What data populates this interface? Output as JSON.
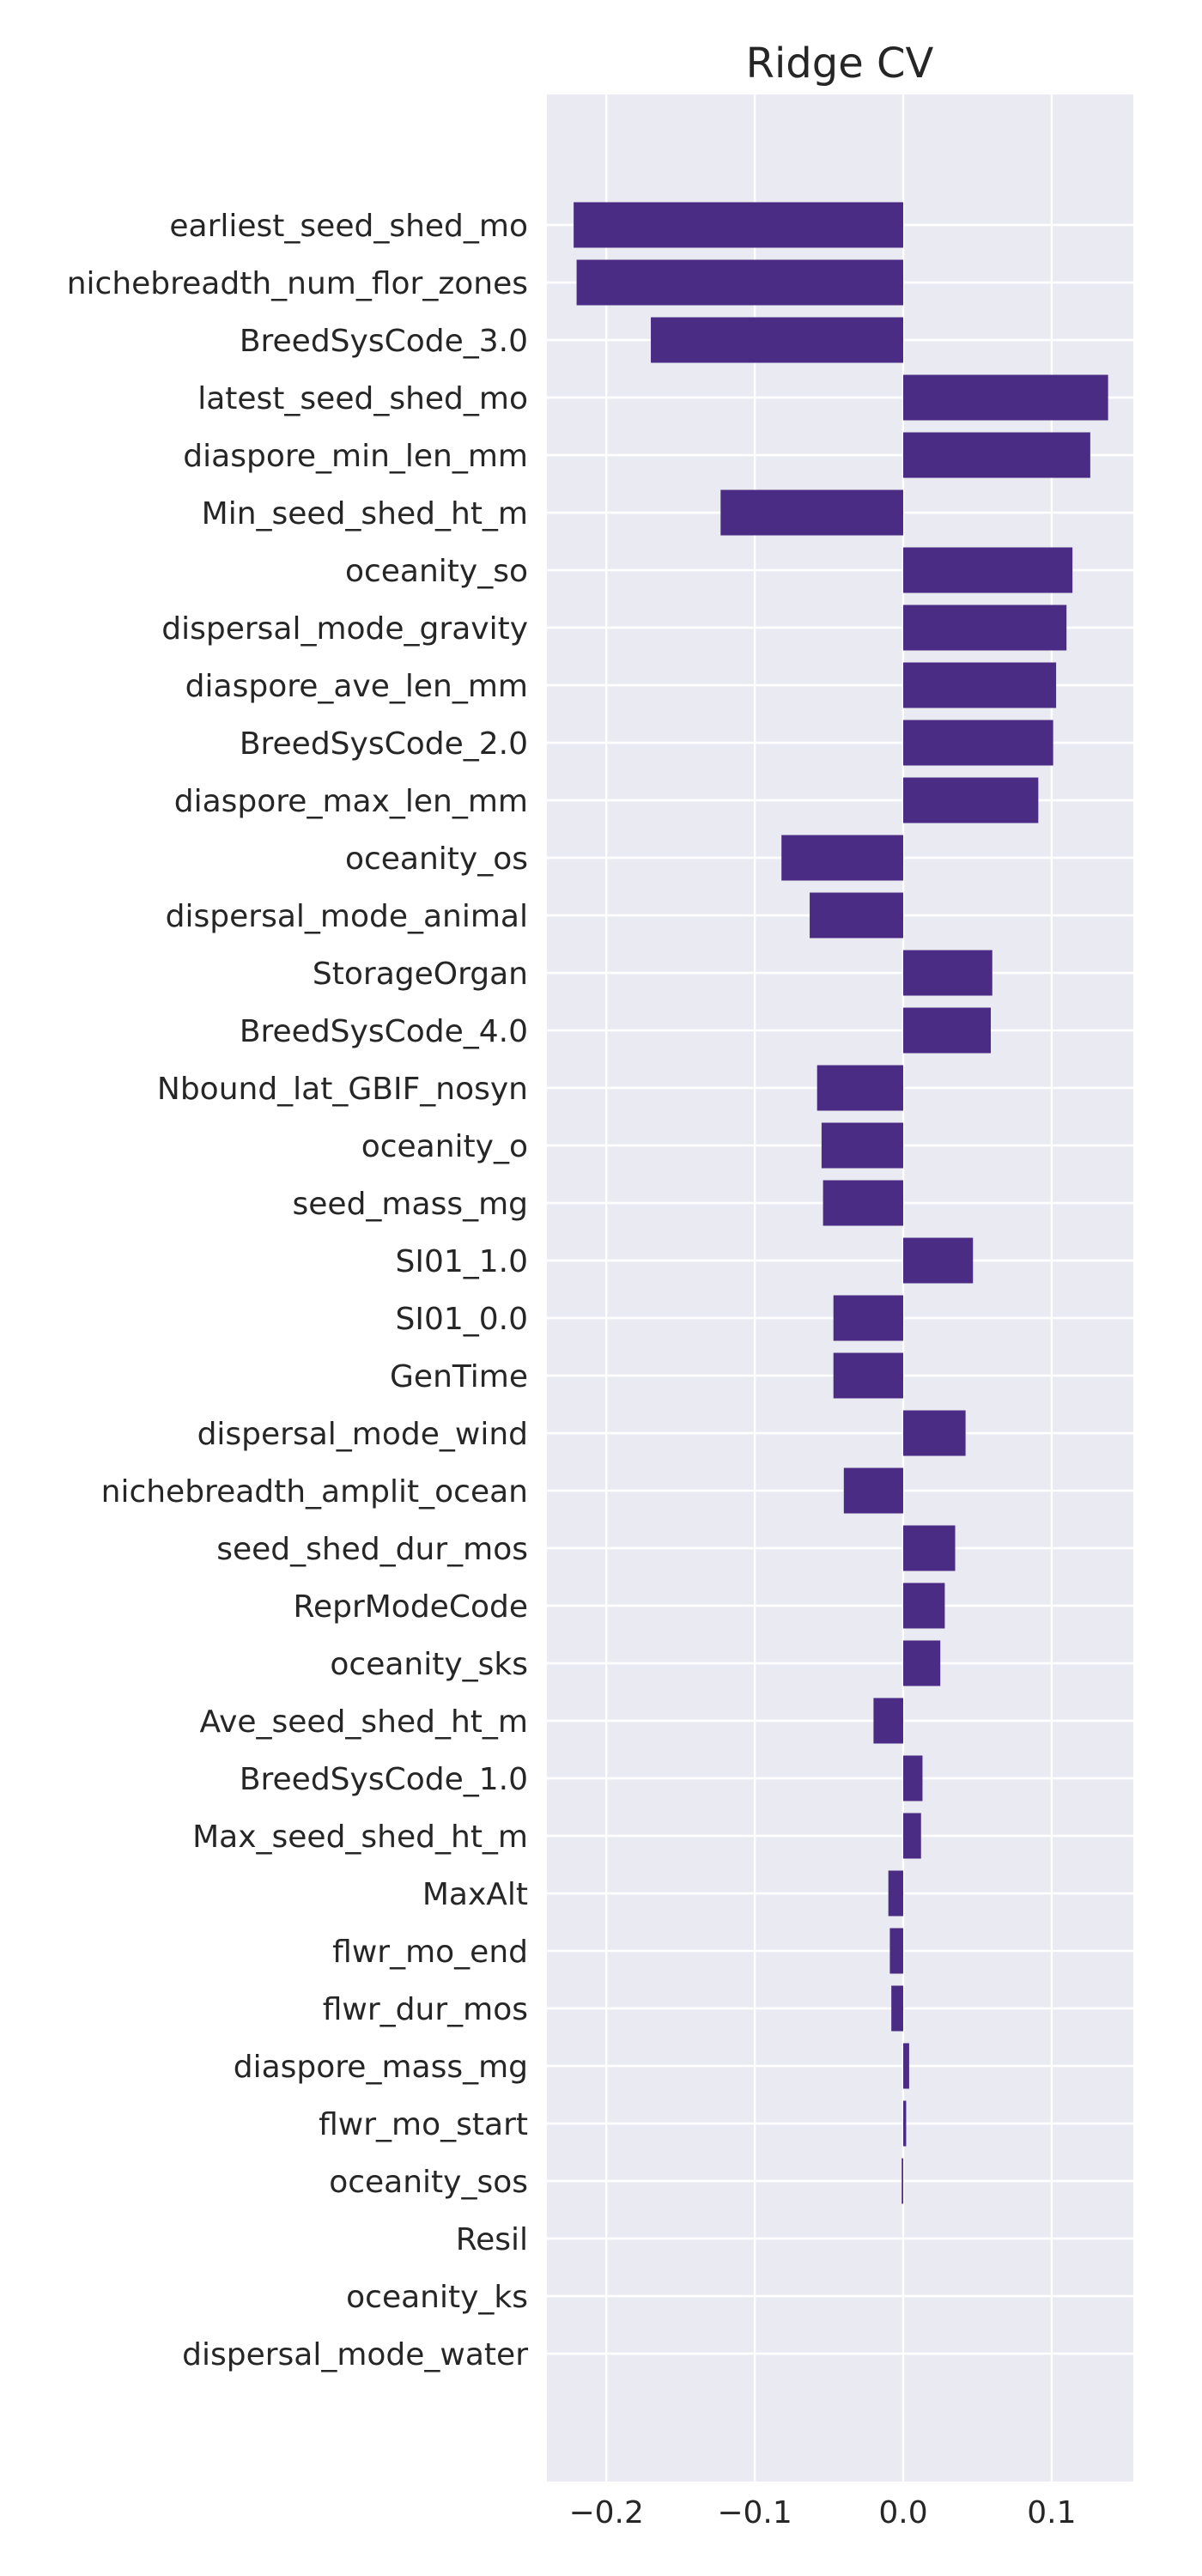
{
  "chart_data": {
    "type": "bar",
    "orientation": "horizontal",
    "title": "Ridge CV",
    "xlabel": "",
    "ylabel": "",
    "xlim": [
      -0.24,
      0.155
    ],
    "xticks": [
      -0.2,
      -0.1,
      0.0,
      0.1
    ],
    "xtick_labels": [
      "−0.2",
      "−0.1",
      "0.0",
      "0.1"
    ],
    "grid": true,
    "colors": {
      "bar": "#4b2c84",
      "plot_background": "#eaeaf2",
      "grid": "#ffffff"
    },
    "categories": [
      "earliest_seed_shed_mo",
      "nichebreadth_num_flor_zones",
      "BreedSysCode_3.0",
      "latest_seed_shed_mo",
      "diaspore_min_len_mm",
      "Min_seed_shed_ht_m",
      "oceanity_so",
      "dispersal_mode_gravity",
      "diaspore_ave_len_mm",
      "BreedSysCode_2.0",
      "diaspore_max_len_mm",
      "oceanity_os",
      "dispersal_mode_animal",
      "StorageOrgan",
      "BreedSysCode_4.0",
      "Nbound_lat_GBIF_nosyn",
      "oceanity_o",
      "seed_mass_mg",
      "SI01_1.0",
      "SI01_0.0",
      "GenTime",
      "dispersal_mode_wind",
      "nichebreadth_amplit_ocean",
      "seed_shed_dur_mos",
      "ReprModeCode",
      "oceanity_sks",
      "Ave_seed_shed_ht_m",
      "BreedSysCode_1.0",
      "Max_seed_shed_ht_m",
      "MaxAlt",
      "flwr_mo_end",
      "flwr_dur_mos",
      "diaspore_mass_mg",
      "flwr_mo_start",
      "oceanity_sos",
      "Resil",
      "oceanity_ks",
      "dispersal_mode_water"
    ],
    "values": [
      -0.222,
      -0.22,
      -0.17,
      0.138,
      0.126,
      -0.123,
      0.114,
      0.11,
      0.103,
      0.101,
      0.091,
      -0.082,
      -0.063,
      0.06,
      0.059,
      -0.058,
      -0.055,
      -0.054,
      0.047,
      -0.047,
      -0.047,
      0.042,
      -0.04,
      0.035,
      0.028,
      0.025,
      -0.02,
      0.013,
      0.012,
      -0.01,
      -0.009,
      -0.008,
      0.004,
      0.002,
      -0.001,
      0.0,
      0.0,
      0.0
    ]
  }
}
